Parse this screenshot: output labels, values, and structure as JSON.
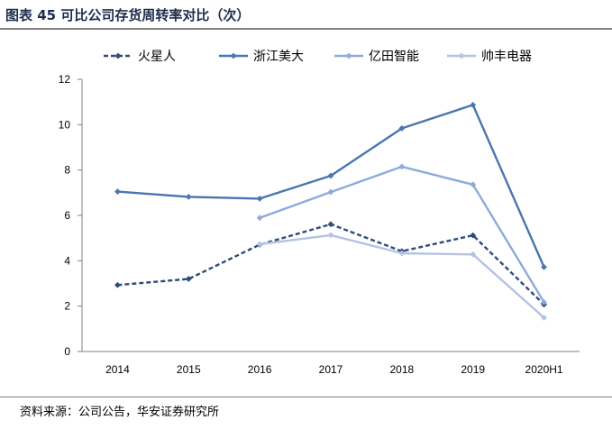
{
  "title": "图表 45 可比公司存货周转率对比（次）",
  "source": "资料来源：公司公告，华安证券研究所",
  "chart_data": {
    "type": "line",
    "categories": [
      "2014",
      "2015",
      "2016",
      "2017",
      "2018",
      "2019",
      "2020H1"
    ],
    "ylim": [
      0,
      12
    ],
    "yticks": [
      0,
      2,
      4,
      6,
      8,
      10,
      12
    ],
    "grid": false,
    "legend_position": "top",
    "series": [
      {
        "name": "火星人",
        "color": "#2e4d7b",
        "dashed": true,
        "values": [
          2.93,
          3.2,
          4.71,
          5.61,
          4.42,
          5.12,
          2.07
        ]
      },
      {
        "name": "浙江美大",
        "color": "#4a75b0",
        "dashed": false,
        "values": [
          7.05,
          6.82,
          6.74,
          7.75,
          9.84,
          10.87,
          3.72
        ]
      },
      {
        "name": "亿田智能",
        "color": "#8eaadb",
        "dashed": false,
        "values": [
          null,
          null,
          5.89,
          7.03,
          8.15,
          7.36,
          2.17
        ]
      },
      {
        "name": "帅丰电器",
        "color": "#b4c3e3",
        "dashed": false,
        "values": [
          null,
          null,
          4.73,
          5.13,
          4.33,
          4.28,
          1.49
        ]
      }
    ]
  }
}
